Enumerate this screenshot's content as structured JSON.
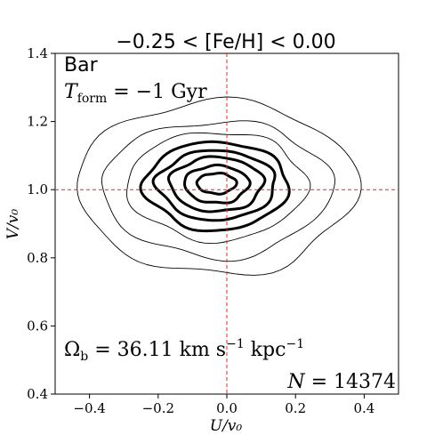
{
  "chart_data": {
    "type": "contour",
    "title": "−0.25 < [Fe/H] < 0.00",
    "xlabel": "U/v₀",
    "ylabel": "V/v₀",
    "xlim": [
      -0.5,
      0.5
    ],
    "ylim": [
      0.4,
      1.4
    ],
    "xticks": [
      -0.4,
      -0.2,
      0.0,
      0.2,
      0.4
    ],
    "xtick_labels": [
      "−0.4",
      "−0.2",
      "0.0",
      "0.2",
      "0.4"
    ],
    "yticks": [
      0.4,
      0.6,
      0.8,
      1.0,
      1.2,
      1.4
    ],
    "ytick_labels": [
      "0.4",
      "0.6",
      "0.8",
      "1.0",
      "1.2",
      "1.4"
    ],
    "reference_lines": {
      "x": 0.0,
      "y": 1.0,
      "color": "#e8262b",
      "style": "dashed"
    },
    "center": [
      -0.03,
      1.02
    ],
    "contours": [
      {
        "level": 1,
        "rx": 0.39,
        "ry_up": 0.24,
        "ry_down": 0.27,
        "thick": false
      },
      {
        "level": 2,
        "rx": 0.32,
        "ry_up": 0.18,
        "ry_down": 0.22,
        "thick": false
      },
      {
        "level": 3,
        "rx": 0.25,
        "ry_up": 0.15,
        "ry_down": 0.17,
        "thick": false
      },
      {
        "level": 4,
        "rx": 0.2,
        "ry_up": 0.12,
        "ry_down": 0.14,
        "thick": true
      },
      {
        "level": 5,
        "rx": 0.165,
        "ry_up": 0.095,
        "ry_down": 0.11,
        "thick": true
      },
      {
        "level": 6,
        "rx": 0.13,
        "ry_up": 0.075,
        "ry_down": 0.085,
        "thick": true
      },
      {
        "level": 7,
        "rx": 0.09,
        "ry_up": 0.05,
        "ry_down": 0.06,
        "thick": true
      },
      {
        "level": 8,
        "rx": 0.055,
        "ry_up": 0.028,
        "ry_down": 0.032,
        "thick": true
      }
    ],
    "annotations": {
      "model": "Bar",
      "tform_label": "T",
      "tform_sub": "form",
      "tform_value": " = −1 Gyr",
      "omega_label": "Ω",
      "omega_sub": "b",
      "omega_value": " = 36.11 km s",
      "omega_exp1": "−1",
      "omega_unit2": " kpc",
      "omega_exp2": "−1",
      "n_label": "N",
      "n_value": " = 14374"
    }
  }
}
